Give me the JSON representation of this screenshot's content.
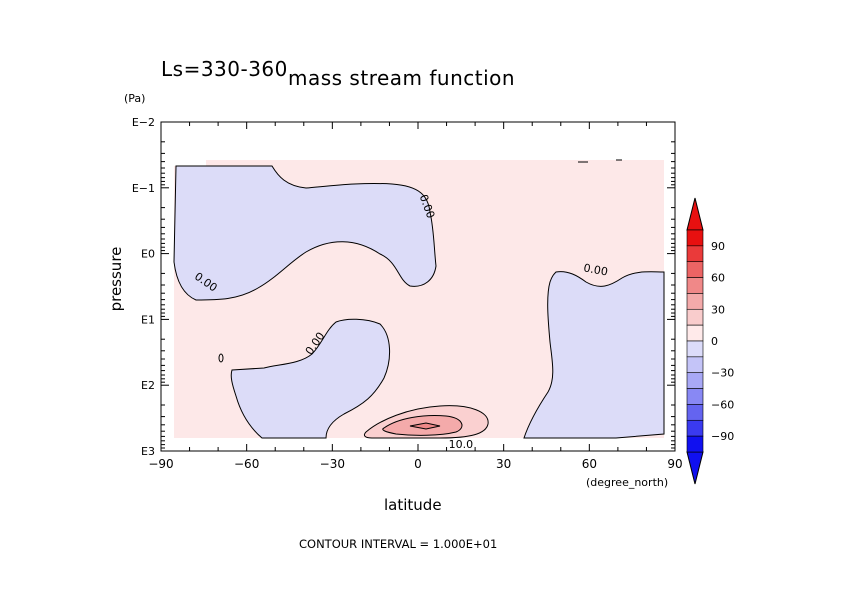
{
  "chart_data": {
    "type": "contour",
    "title": "mass stream function",
    "subtitle": "Ls=330-360",
    "xlabel": "latitude",
    "xunit": "(degree_north)",
    "ylabel": "pressure",
    "yunit": "(Pa)",
    "x_ticks": [
      -90,
      -60,
      -30,
      0,
      30,
      60,
      90
    ],
    "x_tick_labels": [
      "−90",
      "−60",
      "−30",
      "0",
      "30",
      "60",
      "90"
    ],
    "y_scale": "log",
    "y_ticks": [
      0.01,
      0.1,
      1,
      10,
      100,
      1000
    ],
    "y_tick_labels": [
      "E−2",
      "E−1",
      "E0",
      "E1",
      "E2",
      "E3"
    ],
    "xlim": [
      -90,
      90
    ],
    "ylim_pa": [
      1000,
      0.01
    ],
    "contour_labels": [
      {
        "text": "0.00",
        "lat": 2,
        "p": 0.2
      },
      {
        "text": "0.00",
        "lat": -75,
        "p": 3
      },
      {
        "text": "0.00",
        "lat": -35,
        "p": 25
      },
      {
        "text": "0.00",
        "lat": 62,
        "p": 2
      },
      {
        "text": "10.0",
        "lat": 15,
        "p": 900
      }
    ],
    "colorbar": {
      "tick_labels": [
        "90",
        "60",
        "30",
        "0",
        "−30",
        "−60",
        "−90"
      ],
      "colors": [
        "#1010f0",
        "#3a3af0",
        "#6464f0",
        "#8888f4",
        "#a8a8f6",
        "#c4c4f8",
        "#dcdcfa",
        "#ffeaea",
        "#f9cccc",
        "#f4aaaa",
        "#f08888",
        "#ec6464",
        "#ea3a3a",
        "#e81010"
      ],
      "levels": [
        -90,
        -60,
        -30,
        0,
        30,
        60,
        90
      ]
    },
    "positive_fill": "#fde8e8",
    "negative_fill": "#dcdcf8"
  },
  "footer": "CONTOUR INTERVAL = 1.000E+01"
}
